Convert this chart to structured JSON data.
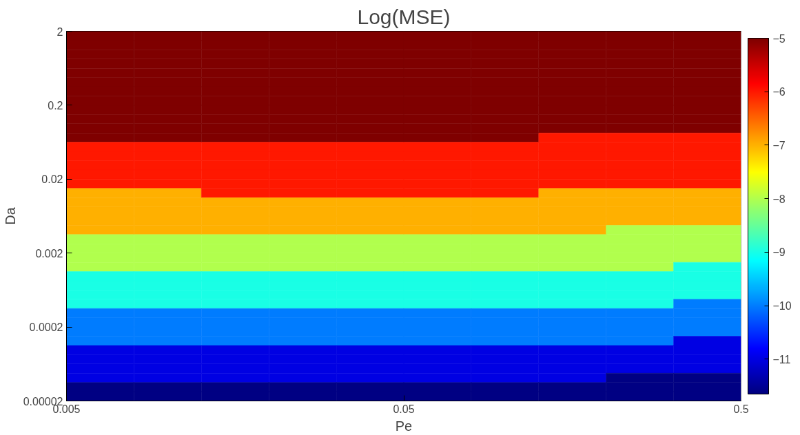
{
  "chart_data": {
    "type": "heatmap",
    "title": "Log(MSE)",
    "xlabel": "Pe",
    "ylabel": "Da",
    "log": "xy",
    "xlim": [
      0.005,
      0.5
    ],
    "ylim": [
      2e-05,
      2
    ],
    "xticks": [
      {
        "value": 0.005,
        "label": "0.005"
      },
      {
        "value": 0.05,
        "label": "0.05"
      },
      {
        "value": 0.5,
        "label": "0.5"
      }
    ],
    "yticks": [
      {
        "value": 2e-05,
        "label": "0.00002"
      },
      {
        "value": 0.0002,
        "label": "0.0002"
      },
      {
        "value": 0.002,
        "label": "0.002"
      },
      {
        "value": 0.02,
        "label": "0.02"
      },
      {
        "value": 0.2,
        "label": "0.2"
      },
      {
        "value": 2,
        "label": "2"
      }
    ],
    "clim": [
      -11.65,
      -5
    ],
    "cticks": [
      -11,
      -10,
      -9,
      -8,
      -7,
      -6,
      -5
    ],
    "grid": false,
    "cells": [
      [
        -5,
        -5,
        -5,
        -5,
        -5,
        -5,
        -5,
        -5,
        -5,
        -5
      ],
      [
        -5,
        -5,
        -5,
        -5,
        -5,
        -5,
        -5,
        -5,
        -5,
        -5
      ],
      [
        -5,
        -5,
        -5,
        -5,
        -5,
        -5,
        -5,
        -5,
        -5,
        -5
      ],
      [
        -5,
        -5,
        -5,
        -5,
        -5,
        -5,
        -5,
        -5,
        -5,
        -5
      ],
      [
        -5,
        -5,
        -5,
        -5,
        -5,
        -5,
        -5,
        -5,
        -5,
        -5
      ],
      [
        -5,
        -5,
        -5,
        -5,
        -5,
        -5,
        -5,
        -5,
        -5,
        -5
      ],
      [
        -5,
        -5,
        -5,
        -5,
        -5,
        -5,
        -5,
        -5,
        -5,
        -5
      ],
      [
        -5,
        -5,
        -5,
        -5,
        -5,
        -5,
        -5,
        -5,
        -5,
        -5
      ],
      [
        -5,
        -5,
        -5,
        -5,
        -5,
        -5,
        -5,
        -5,
        -5,
        -5
      ],
      [
        -5,
        -5,
        -5,
        -5,
        -5,
        -5,
        -5,
        -5,
        -5,
        -5
      ],
      [
        -5,
        -5,
        -5,
        -5,
        -5,
        -5,
        -5,
        -5,
        -5,
        -5
      ],
      [
        -5,
        -5,
        -5,
        -5,
        -5,
        -5,
        -5,
        -6,
        -6,
        -6
      ],
      [
        -6,
        -6,
        -6,
        -6,
        -6,
        -6,
        -6,
        -6,
        -6,
        -6
      ],
      [
        -6,
        -6,
        -6,
        -6,
        -6,
        -6,
        -6,
        -6,
        -6,
        -6
      ],
      [
        -6,
        -6,
        -6,
        -6,
        -6,
        -6,
        -6,
        -6,
        -6,
        -6
      ],
      [
        -6,
        -6,
        -6,
        -6,
        -6,
        -6,
        -6,
        -6,
        -6,
        -6
      ],
      [
        -6,
        -6,
        -6,
        -6,
        -6,
        -6,
        -6,
        -6,
        -6,
        -6
      ],
      [
        -7,
        -7,
        -6,
        -6,
        -6,
        -6,
        -6,
        -7,
        -7,
        -7
      ],
      [
        -7,
        -7,
        -7,
        -7,
        -7,
        -7,
        -7,
        -7,
        -7,
        -7
      ],
      [
        -7,
        -7,
        -7,
        -7,
        -7,
        -7,
        -7,
        -7,
        -7,
        -7
      ],
      [
        -7,
        -7,
        -7,
        -7,
        -7,
        -7,
        -7,
        -7,
        -7,
        -7
      ],
      [
        -7,
        -7,
        -7,
        -7,
        -7,
        -7,
        -7,
        -7,
        -8,
        -8
      ],
      [
        -8,
        -8,
        -8,
        -8,
        -8,
        -8,
        -8,
        -8,
        -8,
        -8
      ],
      [
        -8,
        -8,
        -8,
        -8,
        -8,
        -8,
        -8,
        -8,
        -8,
        -8
      ],
      [
        -8,
        -8,
        -8,
        -8,
        -8,
        -8,
        -8,
        -8,
        -8,
        -8
      ],
      [
        -8,
        -8,
        -8,
        -8,
        -8,
        -8,
        -8,
        -8,
        -8,
        -9
      ],
      [
        -9,
        -9,
        -9,
        -9,
        -9,
        -9,
        -9,
        -9,
        -9,
        -9
      ],
      [
        -9,
        -9,
        -9,
        -9,
        -9,
        -9,
        -9,
        -9,
        -9,
        -9
      ],
      [
        -9,
        -9,
        -9,
        -9,
        -9,
        -9,
        -9,
        -9,
        -9,
        -9
      ],
      [
        -9,
        -9,
        -9,
        -9,
        -9,
        -9,
        -9,
        -9,
        -9,
        -10
      ],
      [
        -10,
        -10,
        -10,
        -10,
        -10,
        -10,
        -10,
        -10,
        -10,
        -10
      ],
      [
        -10,
        -10,
        -10,
        -10,
        -10,
        -10,
        -10,
        -10,
        -10,
        -10
      ],
      [
        -10,
        -10,
        -10,
        -10,
        -10,
        -10,
        -10,
        -10,
        -10,
        -10
      ],
      [
        -10,
        -10,
        -10,
        -10,
        -10,
        -10,
        -10,
        -10,
        -10,
        -11
      ],
      [
        -11,
        -11,
        -11,
        -11,
        -11,
        -11,
        -11,
        -11,
        -11,
        -11
      ],
      [
        -11,
        -11,
        -11,
        -11,
        -11,
        -11,
        -11,
        -11,
        -11,
        -11
      ],
      [
        -11,
        -11,
        -11,
        -11,
        -11,
        -11,
        -11,
        -11,
        -11,
        -11
      ],
      [
        -11,
        -11,
        -11,
        -11,
        -11,
        -11,
        -11,
        -11,
        -11.6,
        -11.6
      ],
      [
        -11.6,
        -11.6,
        -11.6,
        -11.6,
        -11.6,
        -11.6,
        -11.6,
        -11.6,
        -11.6,
        -11.6
      ],
      [
        -11.6,
        -11.6,
        -11.6,
        -11.6,
        -11.6,
        -11.6,
        -11.6,
        -11.6,
        -11.6,
        -11.6
      ]
    ]
  }
}
